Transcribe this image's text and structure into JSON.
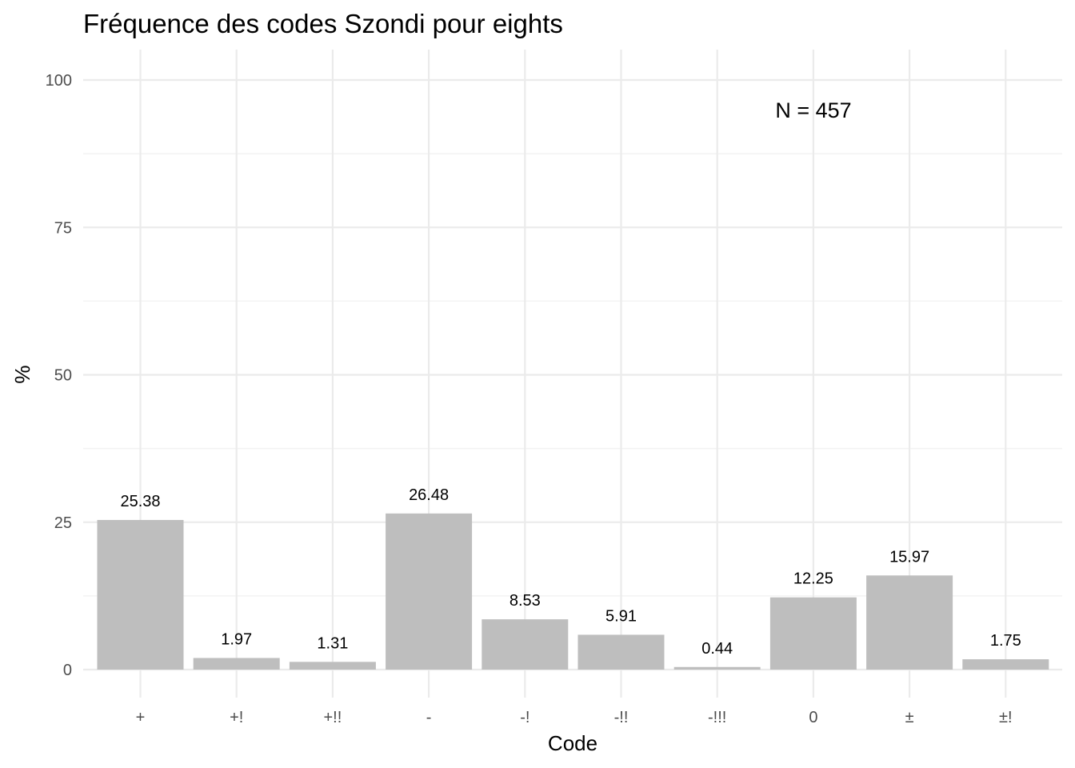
{
  "chart_data": {
    "type": "bar",
    "title": "Fréquence des codes Szondi pour eights",
    "xlabel": "Code",
    "ylabel": "%",
    "categories": [
      "+",
      "+!",
      "+!!",
      "-",
      "-!",
      "-!!",
      "-!!!",
      "0",
      "±",
      "±!"
    ],
    "values": [
      25.38,
      1.97,
      1.31,
      26.48,
      8.53,
      5.91,
      0.44,
      12.25,
      15.97,
      1.75
    ],
    "value_labels": [
      "25.38",
      "1.97",
      "1.31",
      "26.48",
      "8.53",
      "5.91",
      "0.44",
      "12.25",
      "15.97",
      "1.75"
    ],
    "ylim": [
      0,
      100
    ],
    "yticks": [
      0,
      25,
      50,
      75,
      100
    ],
    "ytick_labels": [
      "0",
      "25",
      "50",
      "75",
      "100"
    ],
    "annotation": "N = 457",
    "grid": true,
    "legend": "none",
    "bar_color": "#bebebe"
  }
}
